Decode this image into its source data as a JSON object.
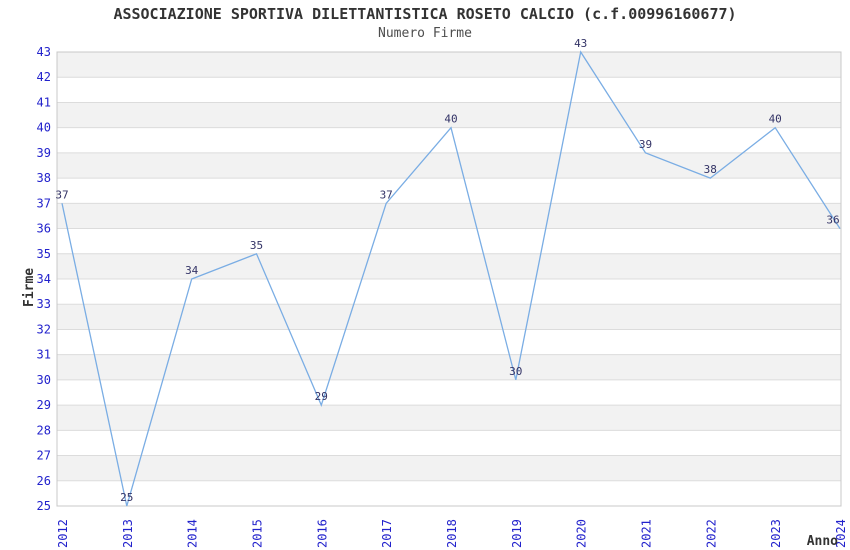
{
  "chart_data": {
    "type": "line",
    "title": "ASSOCIAZIONE SPORTIVA DILETTANTISTICA ROSETO CALCIO (c.f.00996160677)",
    "subtitle": "Numero Firme",
    "categories": [
      "2012",
      "2013",
      "2014",
      "2015",
      "2016",
      "2017",
      "2018",
      "2019",
      "2020",
      "2021",
      "2022",
      "2023",
      "2024"
    ],
    "values": [
      37,
      25,
      34,
      35,
      29,
      37,
      40,
      30,
      43,
      39,
      38,
      40,
      36
    ],
    "xlabel": "Anno",
    "ylabel": "Firme",
    "ylim": [
      25,
      43
    ],
    "y_tick_step": 1,
    "grid": "horizontal-gridlines-every-unit",
    "banded_background": "alternating gray/white 1-unit horizontal bands",
    "legend_position": "none",
    "point_labels_visible": true,
    "markers": "none"
  },
  "colors": {
    "title": "#333333",
    "subtitle": "#4d4d4d",
    "axis_tick": "#2222cc",
    "point_label": "#333366",
    "line": "#7aade4",
    "band": "#f2f2f2",
    "gridline": "#dcdcdc",
    "border": "#c8c8c8",
    "axis_title": "#333333",
    "background": "#ffffff"
  }
}
